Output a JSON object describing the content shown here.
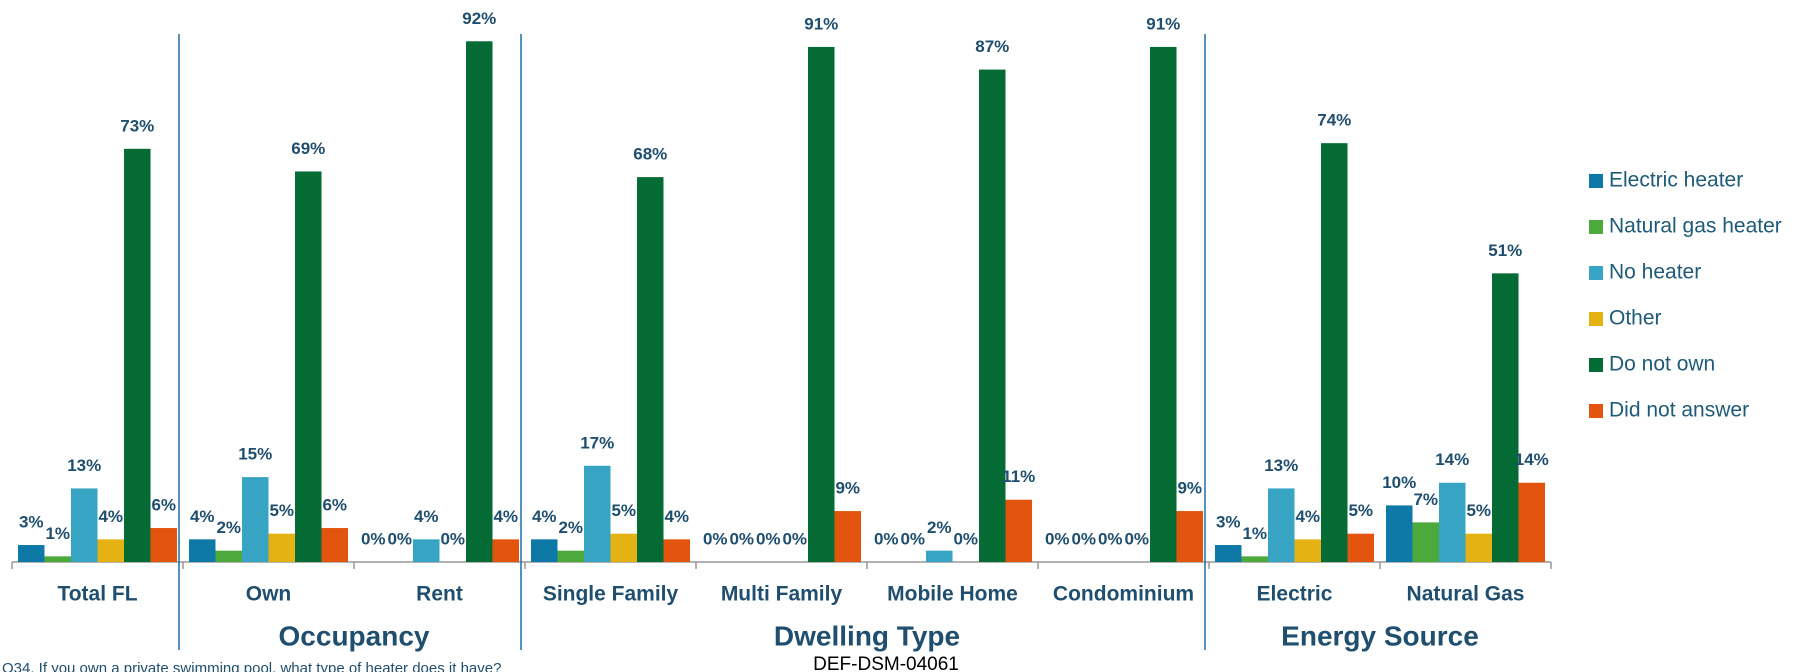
{
  "chart_data": {
    "type": "bar",
    "categories": [
      "Total FL",
      "Own",
      "Rent",
      "Single Family",
      "Multi Family",
      "Mobile Home",
      "Condominium",
      "Electric",
      "Natural Gas"
    ],
    "group_labels": [
      "Occupancy",
      "Dwelling Type",
      "Energy Source"
    ],
    "series": [
      {
        "name": "Electric heater",
        "color": "#0e78a6",
        "values": [
          3,
          4,
          0,
          4,
          0,
          0,
          0,
          3,
          10
        ],
        "value_labels": [
          "3%",
          "4%",
          "0%",
          "4%",
          "0%",
          "0%",
          "0%",
          "3%",
          "10%"
        ]
      },
      {
        "name": "Natural gas heater",
        "color": "#4caa3c",
        "values": [
          1,
          2,
          0,
          2,
          0,
          0,
          0,
          1,
          7
        ],
        "value_labels": [
          "1%",
          "2%",
          "0%",
          "2%",
          "0%",
          "0%",
          "0%",
          "1%",
          "7%"
        ]
      },
      {
        "name": "No heater",
        "color": "#36a4c2",
        "values": [
          13,
          15,
          4,
          17,
          0,
          2,
          0,
          13,
          14
        ],
        "value_labels": [
          "13%",
          "15%",
          "4%",
          "17%",
          "0%",
          "2%",
          "0%",
          "13%",
          "14%"
        ]
      },
      {
        "name": "Other",
        "color": "#e4b213",
        "values": [
          4,
          5,
          0,
          5,
          0,
          0,
          0,
          4,
          5
        ],
        "value_labels": [
          "4%",
          "5%",
          "0%",
          "5%",
          "0%",
          "0%",
          "0%",
          "4%",
          "5%"
        ]
      },
      {
        "name": "Do not own",
        "color": "#056b34",
        "values": [
          73,
          69,
          92,
          68,
          91,
          87,
          91,
          74,
          51
        ],
        "value_labels": [
          "73%",
          "69%",
          "92%",
          "68%",
          "91%",
          "87%",
          "91%",
          "74%",
          "51%"
        ]
      },
      {
        "name": "Did not answer",
        "color": "#e3540f",
        "values": [
          6,
          6,
          4,
          4,
          9,
          11,
          9,
          5,
          14
        ],
        "value_labels": [
          "6%",
          "6%",
          "4%",
          "4%",
          "9%",
          "11%",
          "9%",
          "5%",
          "14%"
        ]
      }
    ],
    "footnote": "Q34. If you own a private swimming pool, what type of heater does it have?",
    "document_id": "DEF-DSM-04061"
  }
}
